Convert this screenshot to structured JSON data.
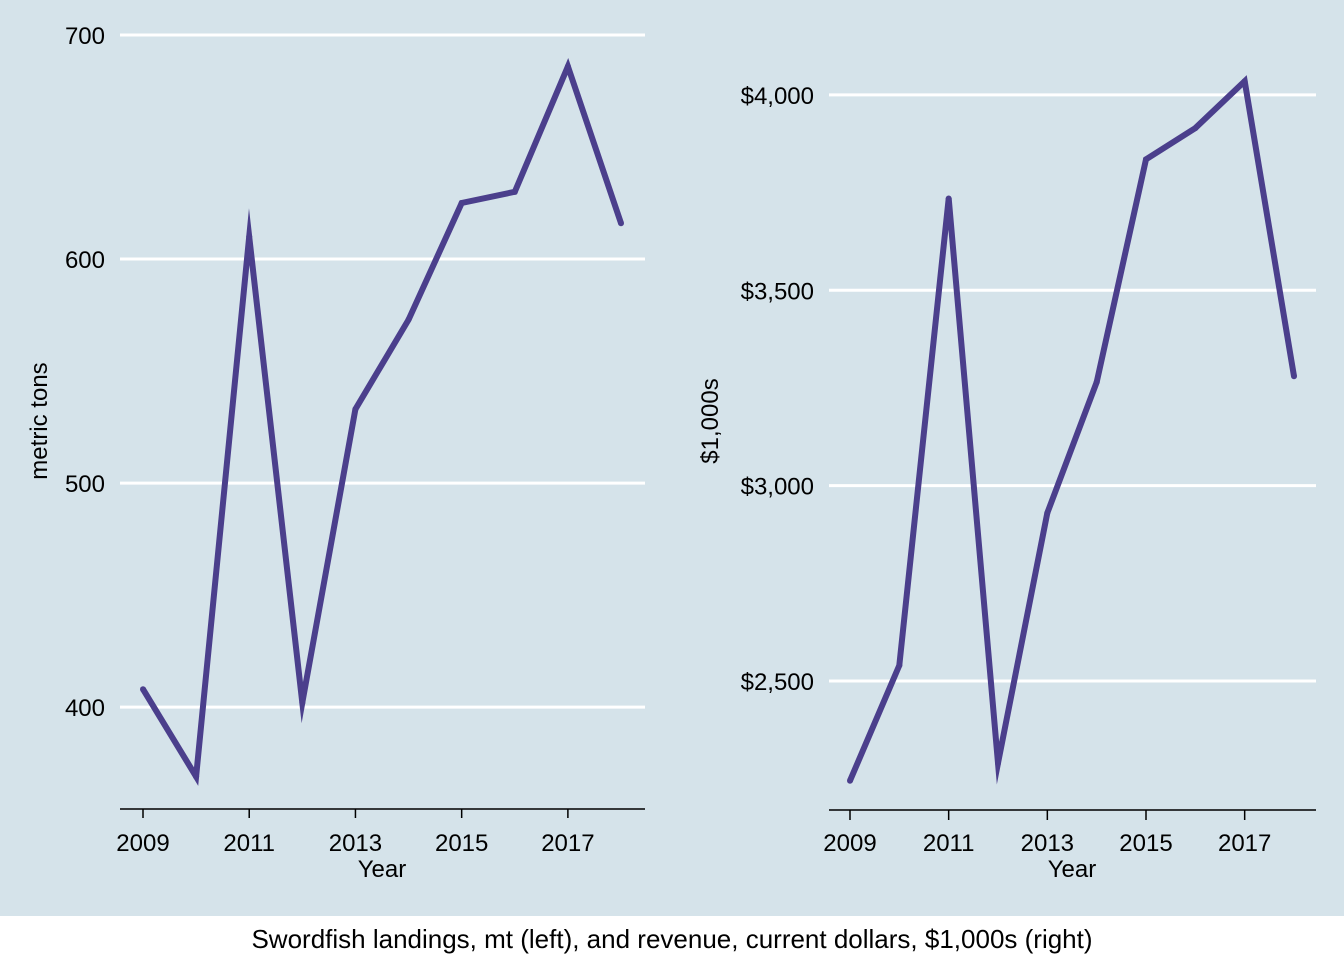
{
  "caption": "Swordfish landings, mt (left), and revenue, current dollars, $1,000s (right)",
  "colors": {
    "panel_background": "#d5e3ea",
    "line": "#4b3f8c",
    "gridline": "#ffffff",
    "axis": "#000000"
  },
  "chart_data": [
    {
      "type": "line",
      "name": "landings",
      "xlabel": "Year",
      "ylabel": "metric tons",
      "x": [
        2009,
        2010,
        2011,
        2012,
        2013,
        2014,
        2015,
        2016,
        2017,
        2018
      ],
      "series": [
        {
          "name": "Swordfish landings (mt)",
          "values": [
            408,
            369,
            610,
            402,
            533,
            573,
            625,
            630,
            686,
            616
          ]
        }
      ],
      "xlim": [
        2009,
        2018
      ],
      "ylim": [
        355,
        700
      ],
      "y_ticks": [
        400,
        500,
        600,
        700
      ],
      "y_tick_labels": [
        "400",
        "500",
        "600",
        "700"
      ],
      "x_ticks": [
        2009,
        2011,
        2013,
        2015,
        2017
      ],
      "x_tick_labels": [
        "2009",
        "2011",
        "2013",
        "2015",
        "2017"
      ],
      "grid": true
    },
    {
      "type": "line",
      "name": "revenue",
      "xlabel": "Year",
      "ylabel": "$1,000s",
      "x": [
        2009,
        2010,
        2011,
        2012,
        2013,
        2014,
        2015,
        2016,
        2017,
        2018
      ],
      "series": [
        {
          "name": "Swordfish revenue ($1,000s)",
          "values": [
            2245,
            2540,
            3735,
            2290,
            2930,
            3265,
            3835,
            3915,
            4035,
            3280
          ]
        }
      ],
      "xlim": [
        2009,
        2018
      ],
      "ylim": [
        2170,
        4120
      ],
      "y_ticks": [
        2500,
        3000,
        3500,
        4000
      ],
      "y_tick_labels": [
        "$2,500",
        "$3,000",
        "$3,500",
        "$4,000"
      ],
      "x_ticks": [
        2009,
        2011,
        2013,
        2015,
        2017
      ],
      "x_tick_labels": [
        "2009",
        "2011",
        "2013",
        "2015",
        "2017"
      ],
      "grid": true
    }
  ]
}
